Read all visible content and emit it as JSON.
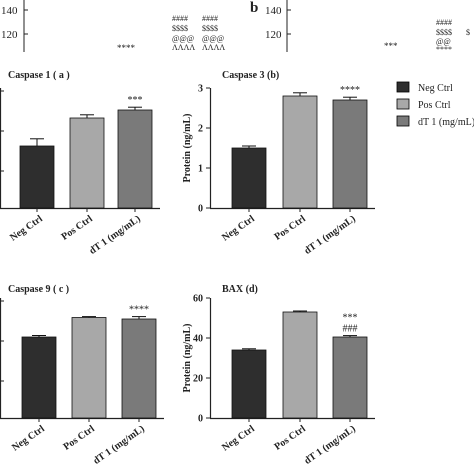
{
  "top_strip": {
    "left": {
      "tick": "120",
      "tick2": "140",
      "mark_far": "****",
      "group1": [
        "####",
        "$$$$",
        "@@@",
        "ΛΛΛΛ"
      ],
      "group2": [
        "####",
        "$$$$",
        "@@@",
        "ΛΛΛΛ"
      ]
    },
    "right": {
      "panel_letter": "b",
      "tick": "120",
      "tick2": "140",
      "mark_far": "***",
      "group1": [
        "####",
        "$$$$",
        "@@",
        "****"
      ],
      "group2": [
        "",
        "$",
        "",
        ""
      ]
    }
  },
  "legend": {
    "entries": [
      {
        "label": "Neg Ctrl",
        "color": "#2e2e2e"
      },
      {
        "label": "Pos Ctrl",
        "color": "#a8a8a8"
      },
      {
        "label": "dT 1 (mg/mL)",
        "color": "#7a7a7a"
      }
    ]
  },
  "chart_data": [
    {
      "type": "bar",
      "title": "Caspase 1 ( a )",
      "categories": [
        "Neg Ctrl",
        "Pos Ctrl",
        "dT 1 (mg/mL)"
      ],
      "values": [
        1.55,
        2.25,
        2.45
      ],
      "errors": [
        0.18,
        0.08,
        0.07
      ],
      "ylim": [
        0,
        3
      ],
      "yticks": [],
      "ylabel": "",
      "annotations": [
        "",
        "",
        "***"
      ]
    },
    {
      "type": "bar",
      "title": "Caspase 3 (b)",
      "categories": [
        "Neg Ctrl",
        "Pos Ctrl",
        "dT 1 (mg/mL)"
      ],
      "values": [
        1.5,
        2.8,
        2.7
      ],
      "errors": [
        0.05,
        0.08,
        0.07
      ],
      "ylim": [
        0,
        3
      ],
      "yticks": [
        "0",
        "1",
        "2",
        "3"
      ],
      "ylabel": "Protein (ng/mL)",
      "annotations": [
        "",
        "",
        "****"
      ]
    },
    {
      "type": "bar",
      "title": "Caspase 9 ( c )",
      "categories": [
        "Neg Ctrl",
        "Pos Ctrl",
        "dT 1 (mg/mL)"
      ],
      "values": [
        2.7,
        3.35,
        3.3
      ],
      "errors": [
        0.05,
        0.03,
        0.08
      ],
      "ylim": [
        0,
        4
      ],
      "yticks": [],
      "ylabel": "",
      "annotations": [
        "",
        "",
        "****"
      ]
    },
    {
      "type": "bar",
      "title": "BAX (d)",
      "categories": [
        "Neg Ctrl",
        "Pos Ctrl",
        "dT 1 (mg/mL)"
      ],
      "values": [
        34,
        53,
        40.5
      ],
      "errors": [
        0.6,
        0.5,
        0.7
      ],
      "ylim": [
        0,
        60
      ],
      "yticks": [
        "0",
        "20",
        "40",
        "60"
      ],
      "ylabel": "Protein (ng/mL)",
      "annotations": [
        "",
        "",
        "***\n###"
      ]
    }
  ]
}
